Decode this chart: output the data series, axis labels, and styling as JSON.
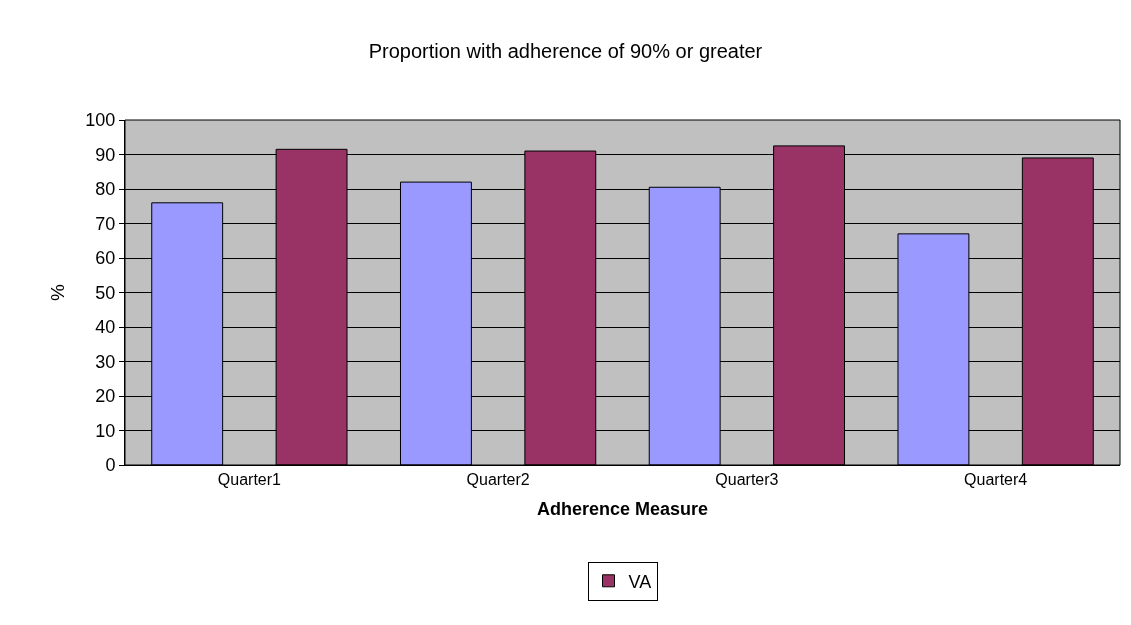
{
  "chart_data": {
    "type": "bar",
    "title": "Proportion with adherence of 90% or greater",
    "xlabel": "Adherence Measure",
    "ylabel": "%",
    "categories": [
      "Quarter1",
      "Quarter2",
      "Quarter3",
      "Quarter4"
    ],
    "series": [
      {
        "color": "#9999ff",
        "values": [
          76,
          82,
          80.5,
          67
        ]
      },
      {
        "name": "VA",
        "color": "#993366",
        "values": [
          91.5,
          91,
          92.5,
          89
        ]
      }
    ],
    "ylim": [
      0,
      100
    ],
    "yticks": [
      0,
      10,
      20,
      30,
      40,
      50,
      60,
      70,
      80,
      90,
      100
    ],
    "grid": "y",
    "legend": "bottom"
  }
}
